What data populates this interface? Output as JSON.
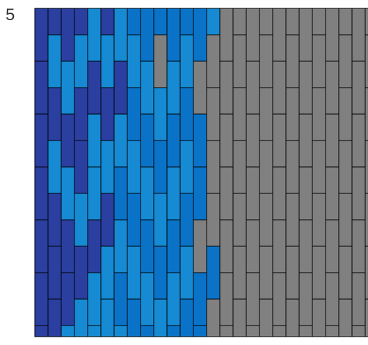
{
  "step_label": "5",
  "colors": {
    "dark_blue": "#2a3f9f",
    "mid_blue": "#0a73c8",
    "light_blue": "#168ad2",
    "gray": "#808080",
    "line": "#000000",
    "background": "#ffffff"
  },
  "columns": [
    [
      "dark_blue",
      "dark_blue",
      "dark_blue",
      "dark_blue",
      "dark_blue",
      "dark_blue",
      "dark_blue",
      "dark_blue",
      "dark_blue",
      "dark_blue",
      "dark_blue",
      "dark_blue",
      "dark_blue"
    ],
    [
      "dark_blue",
      "light_blue",
      "dark_blue",
      "light_blue",
      "dark_blue",
      "dark_blue",
      "dark_blue",
      "dark_blue",
      "dark_blue",
      "light_blue",
      "dark_blue",
      "dark_blue",
      "dark_blue",
      "dark_blue"
    ],
    [
      "dark_blue",
      "light_blue",
      "dark_blue",
      "light_blue",
      "dark_blue",
      "dark_blue",
      "light_blue",
      "dark_blue",
      "dark_blue",
      "light_blue",
      "dark_blue",
      "light_blue",
      "dark_blue"
    ],
    [
      "dark_blue",
      "light_blue",
      "dark_blue",
      "dark_blue",
      "light_blue",
      "dark_blue",
      "light_blue",
      "dark_blue",
      "dark_blue",
      "light_blue",
      "dark_blue",
      "light_blue",
      "dark_blue",
      "dark_blue"
    ],
    [
      "light_blue",
      "dark_blue",
      "light_blue",
      "light_blue",
      "dark_blue",
      "light_blue",
      "light_blue",
      "dark_blue",
      "light_blue",
      "light_blue",
      "light_blue",
      "light_blue",
      "light_blue"
    ],
    [
      "dark_blue",
      "light_blue",
      "dark_blue",
      "light_blue",
      "dark_blue",
      "light_blue",
      "light_blue",
      "dark_blue",
      "light_blue",
      "dark_blue",
      "light_blue",
      "dark_blue",
      "light_blue",
      "light_blue"
    ],
    [
      "light_blue",
      "dark_blue",
      "light_blue",
      "mid_blue",
      "light_blue",
      "mid_blue",
      "light_blue",
      "mid_blue",
      "light_blue",
      "mid_blue",
      "light_blue",
      "mid_blue",
      "light_blue"
    ],
    [
      "mid_blue",
      "light_blue",
      "mid_blue",
      "light_blue",
      "mid_blue",
      "light_blue",
      "mid_blue",
      "light_blue",
      "mid_blue",
      "light_blue",
      "mid_blue",
      "light_blue",
      "mid_blue",
      "light_blue"
    ],
    [
      "mid_blue",
      "light_blue",
      "mid_blue",
      "light_blue",
      "mid_blue",
      "light_blue",
      "mid_blue",
      "light_blue",
      "mid_blue",
      "light_blue",
      "mid_blue",
      "light_blue",
      "gray"
    ],
    [
      "mid_blue",
      "gray",
      "light_blue",
      "mid_blue",
      "light_blue",
      "mid_blue",
      "light_blue",
      "mid_blue",
      "light_blue",
      "mid_blue",
      "light_blue",
      "mid_blue",
      "gray",
      "mid_blue"
    ],
    [
      "mid_blue",
      "light_blue",
      "mid_blue",
      "light_blue",
      "mid_blue",
      "light_blue",
      "mid_blue",
      "light_blue",
      "mid_blue",
      "gray",
      "mid_blue",
      "light_blue",
      "mid_blue"
    ],
    [
      "mid_blue",
      "light_blue",
      "mid_blue",
      "light_blue",
      "mid_blue",
      "light_blue",
      "mid_blue",
      "light_blue",
      "mid_blue",
      "gray",
      "light_blue",
      "gray",
      "mid_blue",
      "gray"
    ],
    [
      "mid_blue",
      "gray",
      "mid_blue",
      "mid_blue",
      "gray",
      "mid_blue",
      "mid_blue",
      "mid_blue",
      "mid_blue",
      "gray",
      "gray",
      "mid_blue",
      "gray"
    ],
    [
      "light_blue",
      "gray",
      "gray",
      "gray",
      "gray",
      "mid_blue",
      "gray",
      "gray",
      "gray",
      "gray",
      "mid_blue",
      "gray",
      "gray",
      "gray"
    ],
    [
      "gray",
      "gray",
      "gray",
      "gray",
      "gray",
      "gray",
      "gray",
      "gray",
      "gray",
      "gray",
      "gray",
      "gray",
      "gray"
    ],
    [
      "gray",
      "gray",
      "gray",
      "gray",
      "gray",
      "gray",
      "gray",
      "gray",
      "gray",
      "gray",
      "gray",
      "gray",
      "gray",
      "gray"
    ],
    [
      "gray",
      "gray",
      "gray",
      "gray",
      "gray",
      "gray",
      "gray",
      "gray",
      "gray",
      "gray",
      "gray",
      "gray",
      "gray"
    ],
    [
      "gray",
      "gray",
      "gray",
      "gray",
      "gray",
      "gray",
      "gray",
      "gray",
      "gray",
      "gray",
      "gray",
      "gray",
      "gray",
      "gray"
    ],
    [
      "gray",
      "gray",
      "gray",
      "gray",
      "gray",
      "gray",
      "gray",
      "gray",
      "gray",
      "gray",
      "gray",
      "gray",
      "gray"
    ],
    [
      "gray",
      "gray",
      "gray",
      "gray",
      "gray",
      "gray",
      "gray",
      "gray",
      "gray",
      "gray",
      "gray",
      "gray",
      "gray",
      "gray"
    ],
    [
      "gray",
      "gray",
      "gray",
      "gray",
      "gray",
      "gray",
      "gray",
      "gray",
      "gray",
      "gray",
      "gray",
      "gray",
      "gray"
    ],
    [
      "gray",
      "gray",
      "gray",
      "gray",
      "gray",
      "gray",
      "gray",
      "gray",
      "gray",
      "gray",
      "gray",
      "gray",
      "gray",
      "gray"
    ],
    [
      "gray",
      "gray",
      "gray",
      "gray",
      "gray",
      "gray",
      "gray",
      "gray",
      "gray",
      "gray",
      "gray",
      "gray",
      "gray"
    ],
    [
      "gray",
      "gray",
      "gray",
      "gray",
      "gray",
      "gray",
      "gray",
      "gray",
      "gray",
      "gray",
      "gray",
      "gray",
      "gray",
      "gray"
    ],
    [
      "gray",
      "gray",
      "gray",
      "gray",
      "gray",
      "gray",
      "gray",
      "gray",
      "gray",
      "gray",
      "gray",
      "gray",
      "gray"
    ],
    [
      "gray",
      "gray",
      "gray",
      "gray",
      "gray",
      "gray",
      "gray",
      "gray",
      "gray",
      "gray",
      "gray",
      "gray",
      "gray",
      "gray"
    ]
  ]
}
